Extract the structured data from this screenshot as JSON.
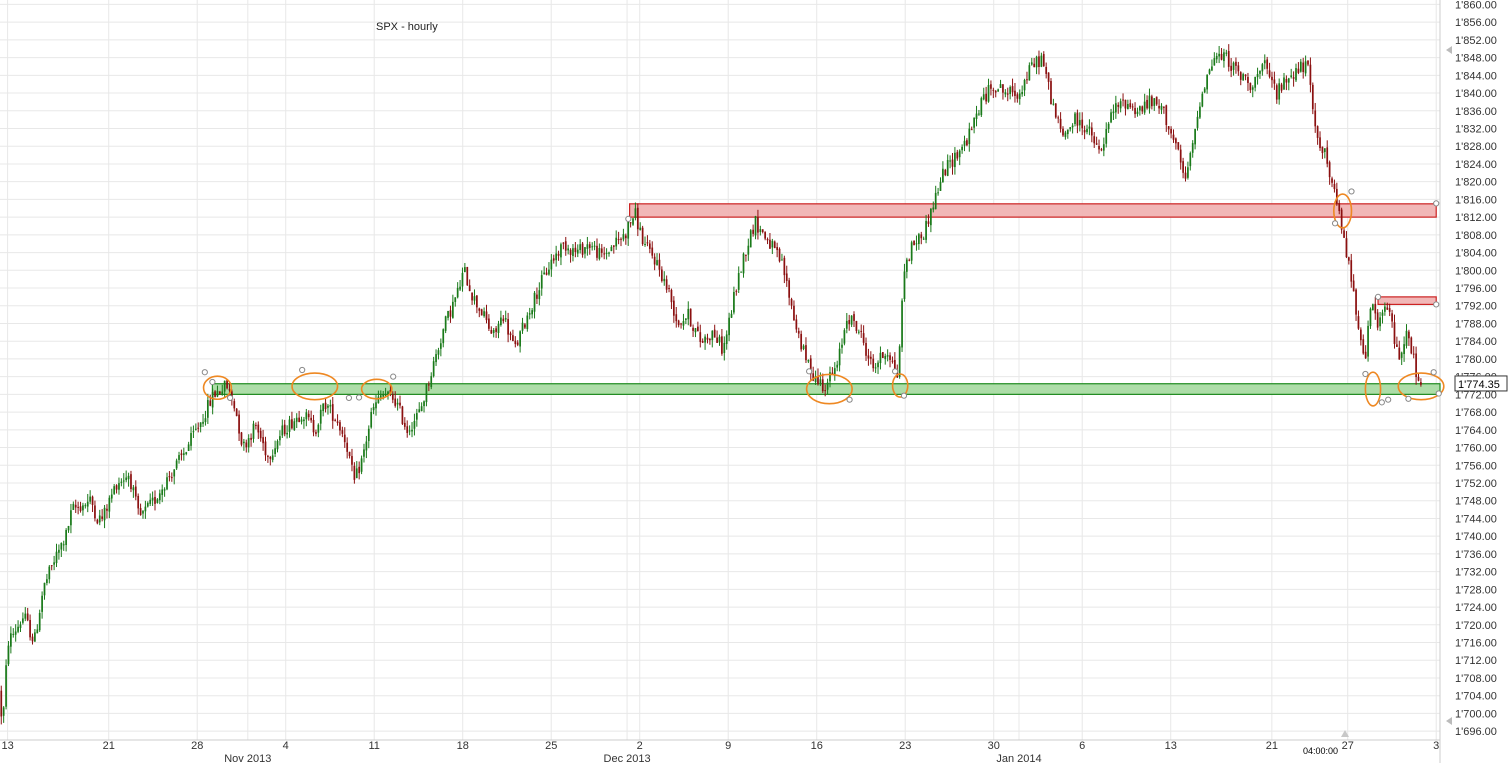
{
  "chart_data": {
    "type": "candlestick",
    "title": "SPX - hourly",
    "instrument": "SPX",
    "interval": "hourly",
    "xlabel": "",
    "ylabel": "",
    "ylim": [
      1694,
      1861
    ],
    "y_tick_step": 4,
    "y_tick_first": 1696,
    "y_tick_last": 1860,
    "y_label_prefix": "1'",
    "grid": true,
    "x_tick_labels": [
      {
        "label": "13",
        "day": -1
      },
      {
        "label": "21",
        "day": 7
      },
      {
        "label": "28",
        "day": 14
      },
      {
        "label": "4",
        "day": 21
      },
      {
        "label": "11",
        "day": 28
      },
      {
        "label": "18",
        "day": 35
      },
      {
        "label": "25",
        "day": 42
      },
      {
        "label": "2",
        "day": 49
      },
      {
        "label": "9",
        "day": 56
      },
      {
        "label": "16",
        "day": 63
      },
      {
        "label": "23",
        "day": 70
      },
      {
        "label": "30",
        "day": 77
      },
      {
        "label": "6",
        "day": 84
      },
      {
        "label": "13",
        "day": 91
      },
      {
        "label": "21",
        "day": 99
      },
      {
        "label": "27",
        "day": 105
      },
      {
        "label": "3",
        "day": 112
      }
    ],
    "month_labels": [
      {
        "label": "Nov 2013",
        "day": 18
      },
      {
        "label": "Dec 2013",
        "day": 48
      },
      {
        "label": "Jan 2014",
        "day": 79
      }
    ],
    "x_range_days": [
      -1.6,
      112.3
    ],
    "date_origin": "2013-10-14",
    "last_price": "1'774.35",
    "last_time": "04:00:00",
    "price_path": [
      {
        "d": -1.5,
        "p": 1705
      },
      {
        "d": -1.2,
        "p": 1697
      },
      {
        "d": -0.8,
        "p": 1716
      },
      {
        "d": 0.5,
        "p": 1722
      },
      {
        "d": 1.3,
        "p": 1716
      },
      {
        "d": 2.0,
        "p": 1728
      },
      {
        "d": 2.8,
        "p": 1734
      },
      {
        "d": 3.8,
        "p": 1740
      },
      {
        "d": 4.3,
        "p": 1746
      },
      {
        "d": 5.8,
        "p": 1748
      },
      {
        "d": 6.3,
        "p": 1744
      },
      {
        "d": 6.7,
        "p": 1744
      },
      {
        "d": 7.8,
        "p": 1752
      },
      {
        "d": 8.8,
        "p": 1754
      },
      {
        "d": 9.6,
        "p": 1744
      },
      {
        "d": 10.8,
        "p": 1748
      },
      {
        "d": 11.6,
        "p": 1752
      },
      {
        "d": 13.0,
        "p": 1758
      },
      {
        "d": 14.5,
        "p": 1766
      },
      {
        "d": 15.5,
        "p": 1772
      },
      {
        "d": 16.5,
        "p": 1774
      },
      {
        "d": 17.2,
        "p": 1769
      },
      {
        "d": 17.8,
        "p": 1760
      },
      {
        "d": 18.8,
        "p": 1765
      },
      {
        "d": 19.8,
        "p": 1758
      },
      {
        "d": 21.0,
        "p": 1764
      },
      {
        "d": 22.5,
        "p": 1768
      },
      {
        "d": 23.5,
        "p": 1764
      },
      {
        "d": 24.3,
        "p": 1770
      },
      {
        "d": 25.3,
        "p": 1766
      },
      {
        "d": 26.0,
        "p": 1761
      },
      {
        "d": 26.6,
        "p": 1752
      },
      {
        "d": 27.3,
        "p": 1758
      },
      {
        "d": 28.0,
        "p": 1768
      },
      {
        "d": 28.8,
        "p": 1772
      },
      {
        "d": 29.8,
        "p": 1771
      },
      {
        "d": 30.8,
        "p": 1764
      },
      {
        "d": 31.8,
        "p": 1768
      },
      {
        "d": 32.8,
        "p": 1778
      },
      {
        "d": 33.8,
        "p": 1788
      },
      {
        "d": 34.8,
        "p": 1795
      },
      {
        "d": 35.3,
        "p": 1800
      },
      {
        "d": 36.0,
        "p": 1794
      },
      {
        "d": 36.8,
        "p": 1790
      },
      {
        "d": 37.6,
        "p": 1785
      },
      {
        "d": 38.4,
        "p": 1790
      },
      {
        "d": 39.3,
        "p": 1782
      },
      {
        "d": 40.2,
        "p": 1789
      },
      {
        "d": 41.2,
        "p": 1796
      },
      {
        "d": 42.2,
        "p": 1802
      },
      {
        "d": 43.2,
        "p": 1806
      },
      {
        "d": 44.2,
        "p": 1804
      },
      {
        "d": 45.2,
        "p": 1806
      },
      {
        "d": 46.2,
        "p": 1803
      },
      {
        "d": 47.2,
        "p": 1806
      },
      {
        "d": 48.0,
        "p": 1808
      },
      {
        "d": 48.8,
        "p": 1813
      },
      {
        "d": 49.5,
        "p": 1806
      },
      {
        "d": 50.5,
        "p": 1802
      },
      {
        "d": 51.5,
        "p": 1795
      },
      {
        "d": 52.2,
        "p": 1788
      },
      {
        "d": 53.0,
        "p": 1790
      },
      {
        "d": 54.0,
        "p": 1784
      },
      {
        "d": 55.0,
        "p": 1786
      },
      {
        "d": 55.8,
        "p": 1782
      },
      {
        "d": 56.8,
        "p": 1796
      },
      {
        "d": 57.5,
        "p": 1804
      },
      {
        "d": 58.3,
        "p": 1811
      },
      {
        "d": 59.5,
        "p": 1806
      },
      {
        "d": 60.5,
        "p": 1801
      },
      {
        "d": 61.5,
        "p": 1788
      },
      {
        "d": 62.3,
        "p": 1780
      },
      {
        "d": 63.0,
        "p": 1776
      },
      {
        "d": 63.8,
        "p": 1774
      },
      {
        "d": 64.8,
        "p": 1778
      },
      {
        "d": 65.6,
        "p": 1790
      },
      {
        "d": 66.6,
        "p": 1786
      },
      {
        "d": 67.6,
        "p": 1778
      },
      {
        "d": 68.8,
        "p": 1782
      },
      {
        "d": 69.6,
        "p": 1776
      },
      {
        "d": 70.1,
        "p": 1800
      },
      {
        "d": 70.8,
        "p": 1806
      },
      {
        "d": 71.6,
        "p": 1808
      },
      {
        "d": 72.3,
        "p": 1814
      },
      {
        "d": 73.2,
        "p": 1822
      },
      {
        "d": 74.2,
        "p": 1826
      },
      {
        "d": 75.2,
        "p": 1830
      },
      {
        "d": 76.2,
        "p": 1838
      },
      {
        "d": 77.2,
        "p": 1842
      },
      {
        "d": 78.2,
        "p": 1840
      },
      {
        "d": 79.2,
        "p": 1840
      },
      {
        "d": 80.2,
        "p": 1846
      },
      {
        "d": 81.0,
        "p": 1848
      },
      {
        "d": 81.8,
        "p": 1838
      },
      {
        "d": 82.6,
        "p": 1830
      },
      {
        "d": 83.6,
        "p": 1834
      },
      {
        "d": 84.6,
        "p": 1832
      },
      {
        "d": 85.6,
        "p": 1826
      },
      {
        "d": 86.6,
        "p": 1836
      },
      {
        "d": 87.6,
        "p": 1838
      },
      {
        "d": 88.6,
        "p": 1836
      },
      {
        "d": 89.6,
        "p": 1838
      },
      {
        "d": 90.6,
        "p": 1836
      },
      {
        "d": 91.6,
        "p": 1828
      },
      {
        "d": 92.3,
        "p": 1820
      },
      {
        "d": 92.8,
        "p": 1826
      },
      {
        "d": 93.6,
        "p": 1840
      },
      {
        "d": 94.6,
        "p": 1848
      },
      {
        "d": 95.6,
        "p": 1848
      },
      {
        "d": 96.6,
        "p": 1844
      },
      {
        "d": 97.6,
        "p": 1842
      },
      {
        "d": 98.6,
        "p": 1846
      },
      {
        "d": 99.6,
        "p": 1840
      },
      {
        "d": 100.6,
        "p": 1844
      },
      {
        "d": 101.6,
        "p": 1846
      },
      {
        "d": 102.0,
        "p": 1846
      },
      {
        "d": 102.6,
        "p": 1832
      },
      {
        "d": 103.4,
        "p": 1826
      },
      {
        "d": 104.3,
        "p": 1815
      },
      {
        "d": 105.0,
        "p": 1806
      },
      {
        "d": 105.8,
        "p": 1792
      },
      {
        "d": 106.6,
        "p": 1780
      },
      {
        "d": 107.0,
        "p": 1792
      },
      {
        "d": 107.6,
        "p": 1788
      },
      {
        "d": 108.4,
        "p": 1792
      },
      {
        "d": 109.2,
        "p": 1780
      },
      {
        "d": 109.8,
        "p": 1786
      },
      {
        "d": 110.4,
        "p": 1780
      },
      {
        "d": 110.8,
        "p": 1774
      }
    ],
    "zones": [
      {
        "type": "resistance",
        "from_day": 48.2,
        "to_day": 112.0,
        "low": 1812.0,
        "high": 1815.0,
        "fill": "#f0b3b3",
        "stroke": "#cc2222"
      },
      {
        "type": "resistance",
        "from_day": 107.4,
        "to_day": 112.0,
        "low": 1792.3,
        "high": 1794.0,
        "fill": "#f0b3b3",
        "stroke": "#cc2222"
      },
      {
        "type": "support",
        "from_day": 15.2,
        "to_day": 112.3,
        "low": 1772.0,
        "high": 1774.4,
        "fill": "#a9dba3",
        "stroke": "#1f8a1f"
      }
    ],
    "annotation_ellipses": [
      {
        "day": 15.6,
        "price": 1773.5,
        "rx_days": 1.1,
        "ry_price": 2.6
      },
      {
        "day": 23.3,
        "price": 1773.8,
        "rx_days": 1.8,
        "ry_price": 3.0
      },
      {
        "day": 28.2,
        "price": 1773.2,
        "rx_days": 1.2,
        "ry_price": 2.2
      },
      {
        "day": 64.0,
        "price": 1773.2,
        "rx_days": 1.8,
        "ry_price": 3.3
      },
      {
        "day": 69.6,
        "price": 1774.0,
        "rx_days": 0.6,
        "ry_price": 2.6
      },
      {
        "day": 104.6,
        "price": 1813.4,
        "rx_days": 0.7,
        "ry_price": 3.8
      },
      {
        "day": 107.0,
        "price": 1773.2,
        "rx_days": 0.6,
        "ry_price": 3.8
      },
      {
        "day": 110.8,
        "price": 1773.8,
        "rx_days": 1.8,
        "ry_price": 3.0
      }
    ],
    "anchor_markers": [
      {
        "day": 14.6,
        "price": 1777.0
      },
      {
        "day": 15.2,
        "price": 1774.8
      },
      {
        "day": 16.6,
        "price": 1771.2
      },
      {
        "day": 22.3,
        "price": 1777.5
      },
      {
        "day": 26.0,
        "price": 1771.2
      },
      {
        "day": 26.8,
        "price": 1771.3
      },
      {
        "day": 29.5,
        "price": 1776.0
      },
      {
        "day": 48.1,
        "price": 1811.6
      },
      {
        "day": 62.4,
        "price": 1777.2
      },
      {
        "day": 65.6,
        "price": 1770.8
      },
      {
        "day": 69.2,
        "price": 1777.2
      },
      {
        "day": 69.9,
        "price": 1771.7
      },
      {
        "day": 104.0,
        "price": 1810.6
      },
      {
        "day": 105.3,
        "price": 1817.8
      },
      {
        "day": 106.4,
        "price": 1776.6
      },
      {
        "day": 107.7,
        "price": 1770.2
      },
      {
        "day": 108.2,
        "price": 1770.8
      },
      {
        "day": 109.8,
        "price": 1771.0
      },
      {
        "day": 111.8,
        "price": 1777.0
      },
      {
        "day": 112.0,
        "price": 1815.1
      },
      {
        "day": 112.0,
        "price": 1792.3
      },
      {
        "day": 112.2,
        "price": 1772.2
      },
      {
        "day": 107.4,
        "price": 1794.0
      }
    ],
    "colors": {
      "up": "#1a7a1a",
      "down": "#8b1010",
      "grid": "#e8e8e8",
      "axis": "#cccccc",
      "ellipse": "#ee8822",
      "marker": "#888888",
      "right_arrow": "#bbbbbb"
    }
  }
}
